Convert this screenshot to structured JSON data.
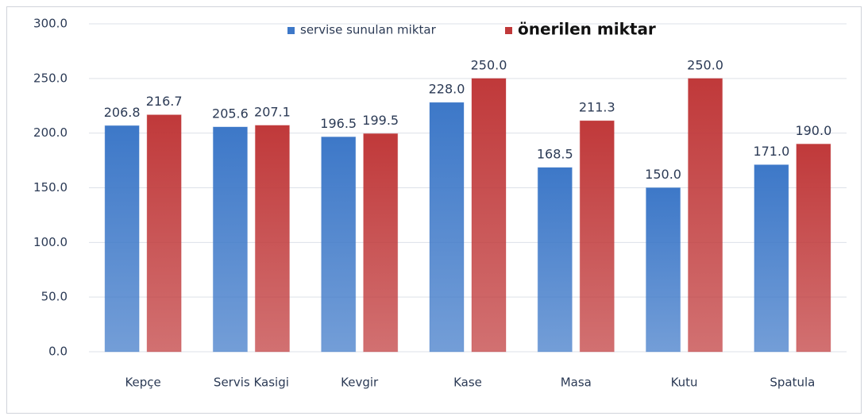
{
  "chart_data": {
    "type": "bar",
    "categories": [
      "Kepçe",
      "Servis Kasigi",
      "Kevgir",
      "Kase",
      "Masa",
      "Kutu",
      "Spatula"
    ],
    "series": [
      {
        "name": "servise sunulan miktar",
        "color": "#3d78c8",
        "values": [
          206.8,
          205.6,
          196.5,
          228.0,
          168.5,
          150.0,
          171.0
        ],
        "value_labels": [
          "206.8",
          "205.6",
          "196.5",
          "228.0",
          "168.5",
          "150.0",
          "171.0"
        ]
      },
      {
        "name": "önerilen miktar",
        "color": "#c0393a",
        "values": [
          216.7,
          207.1,
          199.5,
          250.0,
          211.3,
          250.0,
          190.0
        ],
        "value_labels": [
          "216.7",
          "207.1",
          "199.5",
          "250.0",
          "211.3",
          "250.0",
          "190.0"
        ]
      }
    ],
    "ylim": [
      0,
      300
    ],
    "yticks": [
      {
        "value": 0,
        "label": "0.0"
      },
      {
        "value": 50,
        "label": "50.0"
      },
      {
        "value": 100,
        "label": "100.0"
      },
      {
        "value": 150,
        "label": "150.0"
      },
      {
        "value": 200,
        "label": "200.0"
      },
      {
        "value": 250,
        "label": "250.0"
      },
      {
        "value": 300,
        "label": "300.0"
      }
    ],
    "grid": true,
    "legend": "top"
  }
}
